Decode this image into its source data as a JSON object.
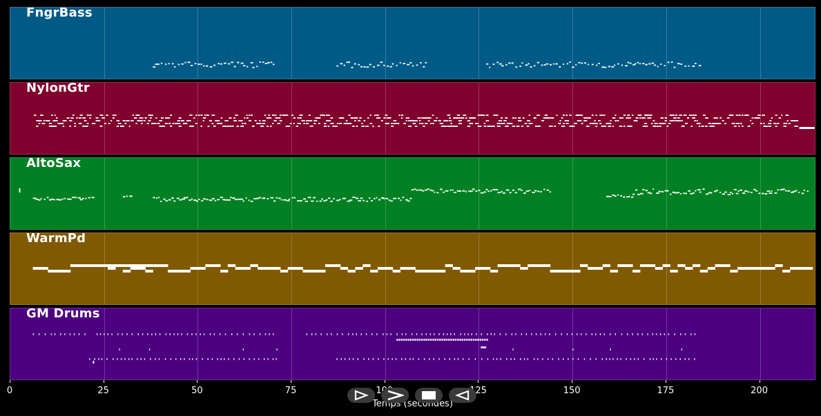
{
  "tracks": [
    {
      "name": "FngrBass",
      "color": "#005a86"
    },
    {
      "name": "NylonGtr",
      "color": "#80002e"
    },
    {
      "name": "AltoSax",
      "color": "#008022"
    },
    {
      "name": "WarmPd",
      "color": "#805900"
    },
    {
      "name": "GM Drums",
      "color": "#4c0080"
    }
  ],
  "axis": {
    "title": "Temps (secondes)",
    "min": 0,
    "max": 215,
    "ticks": [
      "0",
      "25",
      "50",
      "75",
      "100",
      "125",
      "150",
      "175",
      "200"
    ]
  },
  "transport": {
    "buttons": [
      "play-icon",
      "forward-icon",
      "stop-icon",
      "rewind-icon"
    ]
  }
}
